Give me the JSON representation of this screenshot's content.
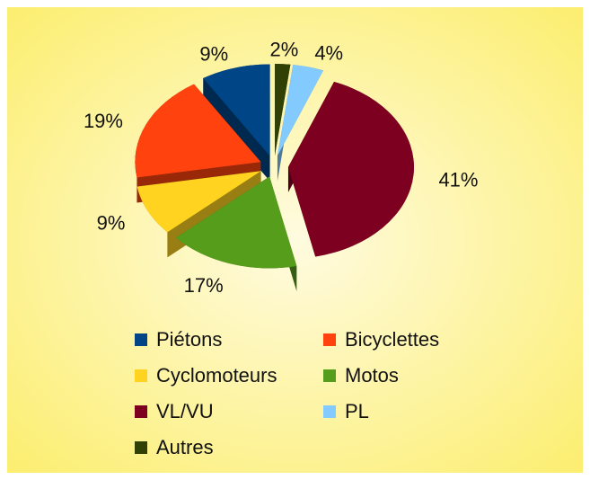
{
  "chart_data": {
    "type": "pie",
    "categories": [
      "Piétons",
      "Bicyclettes",
      "Cyclomoteurs",
      "Motos",
      "VL/VU",
      "PL",
      "Autres"
    ],
    "values": [
      9,
      19,
      9,
      17,
      41,
      4,
      2
    ],
    "value_labels": [
      "9%",
      "19%",
      "9%",
      "17%",
      "41%",
      "4%",
      "2%"
    ],
    "colors": [
      "#004586",
      "#ff420e",
      "#ffd320",
      "#579d1c",
      "#7e0021",
      "#83caff",
      "#314004"
    ],
    "legend": "bottom"
  }
}
